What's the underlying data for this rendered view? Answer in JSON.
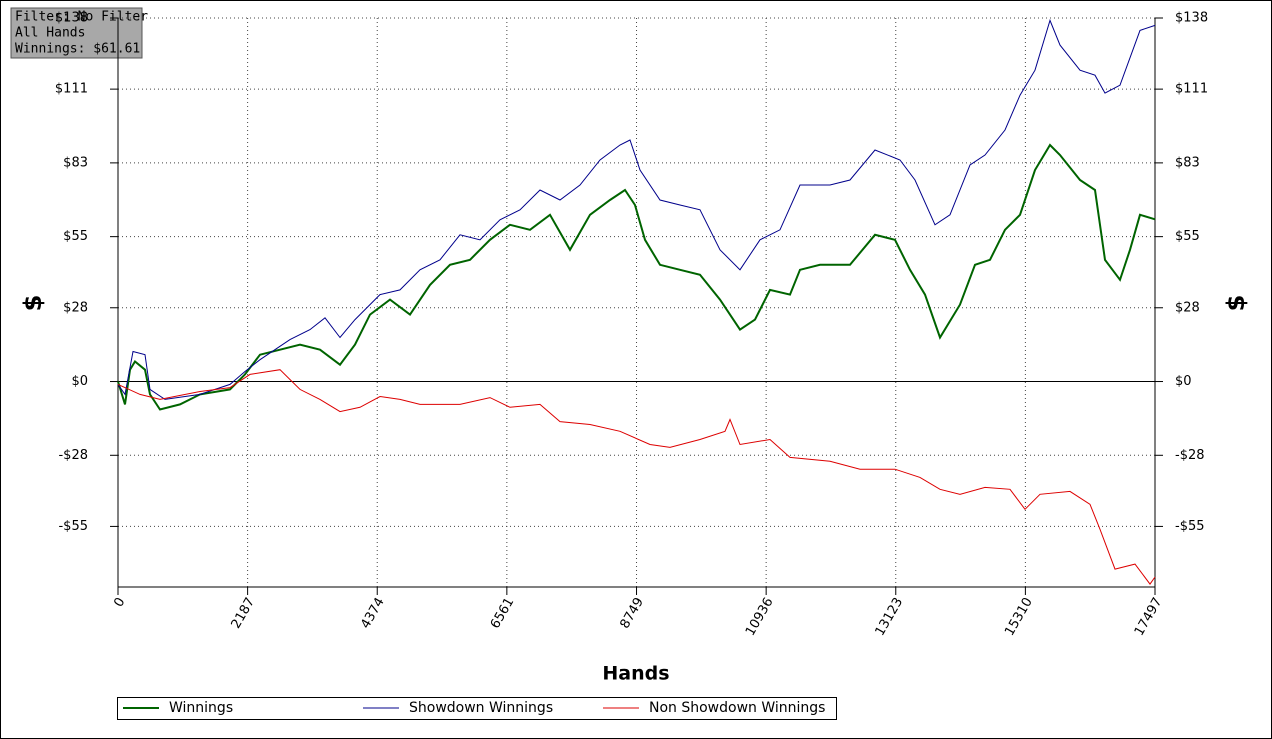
{
  "chart_data": {
    "type": "line",
    "annotations": [
      "Filter: No Filter",
      "All Hands",
      "Winnings: $61.61"
    ],
    "xlabel": "Hands",
    "ylabel": "$",
    "y2label": "$",
    "xlim": [
      0,
      17497
    ],
    "xticks": [
      0,
      2187,
      4374,
      6561,
      8749,
      10936,
      13123,
      15310,
      17497
    ],
    "ylim": [
      -78,
      138
    ],
    "yticks": [
      {
        "value": 138,
        "label": "$138"
      },
      {
        "value": 111,
        "label": "$111"
      },
      {
        "value": 83,
        "label": "$83"
      },
      {
        "value": 55,
        "label": "$55"
      },
      {
        "value": 28,
        "label": "$28"
      },
      {
        "value": 0,
        "label": "$0"
      },
      {
        "value": -28,
        "label": "-$28"
      },
      {
        "value": -55,
        "label": "-$55"
      }
    ],
    "y2lim": [
      -78,
      138
    ],
    "y2ticks": [
      {
        "value": 138,
        "label": "$138"
      },
      {
        "value": 111,
        "label": "$111"
      },
      {
        "value": 83,
        "label": "$83"
      },
      {
        "value": 55,
        "label": "$55"
      },
      {
        "value": 28,
        "label": "$28"
      },
      {
        "value": 0,
        "label": "$0"
      },
      {
        "value": -28,
        "label": "-$28"
      },
      {
        "value": -55,
        "label": "-$55"
      }
    ],
    "grid": true,
    "legend": "bottom",
    "series": [
      {
        "name": "Winnings",
        "color": "#006400",
        "x": [
          0,
          118,
          202,
          287,
          456,
          540,
          709,
          1046,
          1384,
          1890,
          2143,
          2396,
          2734,
          3071,
          3409,
          3746,
          3999,
          4252,
          4590,
          4927,
          5264,
          5602,
          5939,
          6277,
          6614,
          6952,
          7289,
          7627,
          7964,
          8302,
          8555,
          8723,
          8892,
          9145,
          9483,
          9820,
          10157,
          10495,
          10748,
          11001,
          11339,
          11507,
          11845,
          12351,
          12773,
          13110,
          13363,
          13616,
          13870,
          14207,
          14460,
          14713,
          14966,
          15219,
          15472,
          15726,
          15894,
          16232,
          16485,
          16654,
          16907,
          17075,
          17244,
          17497
        ],
        "values": [
          0,
          -8.7,
          4.5,
          7.6,
          4.5,
          -4.9,
          -10.6,
          -8.7,
          -4.9,
          -3.0,
          2.7,
          10.2,
          12.1,
          14.0,
          12.1,
          6.4,
          14.0,
          25.4,
          31.1,
          25.4,
          36.7,
          44.3,
          46.2,
          53.8,
          59.5,
          57.6,
          63.3,
          50.0,
          63.3,
          68.9,
          72.7,
          67.0,
          53.8,
          44.3,
          42.4,
          40.5,
          31.1,
          19.7,
          23.5,
          34.8,
          33.0,
          42.4,
          44.3,
          44.3,
          55.7,
          53.8,
          42.4,
          33.0,
          16.7,
          29.2,
          44.3,
          46.2,
          57.6,
          63.3,
          80.3,
          89.8,
          86.0,
          76.5,
          72.7,
          46.2,
          38.6,
          50.0,
          63.3,
          61.6
        ]
      },
      {
        "name": "Showdown Winnings",
        "color": "#00008b",
        "x": [
          0,
          118,
          253,
          456,
          540,
          793,
          1384,
          1890,
          2143,
          2396,
          2902,
          3240,
          3493,
          3746,
          3999,
          4421,
          4758,
          5096,
          5433,
          5771,
          6108,
          6445,
          6783,
          7120,
          7458,
          7795,
          8133,
          8470,
          8639,
          8808,
          9145,
          9483,
          9820,
          10157,
          10495,
          10832,
          11170,
          11507,
          12014,
          12351,
          12773,
          13195,
          13448,
          13785,
          14038,
          14376,
          14629,
          14966,
          15219,
          15472,
          15726,
          15894,
          16232,
          16485,
          16654,
          16907,
          17244,
          17497
        ],
        "values": [
          -1.1,
          -4.9,
          11.4,
          10.2,
          -3.0,
          -6.8,
          -4.9,
          -1.1,
          3.8,
          8.3,
          15.9,
          19.7,
          24.2,
          16.7,
          23.5,
          33.0,
          34.8,
          42.4,
          46.2,
          55.7,
          53.8,
          61.4,
          65.2,
          72.7,
          68.9,
          74.6,
          84.1,
          89.8,
          91.7,
          80.3,
          68.9,
          67.0,
          65.2,
          50.0,
          42.4,
          53.8,
          57.6,
          74.6,
          74.6,
          76.5,
          87.9,
          84.1,
          76.5,
          59.5,
          63.3,
          82.2,
          86.0,
          95.5,
          108.7,
          118.2,
          137.1,
          127.7,
          118.2,
          116.3,
          109.5,
          112.5,
          133.3,
          135.2
        ]
      },
      {
        "name": "Non Showdown Winnings",
        "color": "#dd0000",
        "x": [
          0,
          371,
          709,
          1384,
          1890,
          2227,
          2734,
          3071,
          3409,
          3746,
          4083,
          4421,
          4758,
          5096,
          5433,
          5771,
          6277,
          6614,
          7120,
          7458,
          7964,
          8470,
          8976,
          9314,
          9820,
          10242,
          10326,
          10495,
          11001,
          11339,
          12014,
          12520,
          13110,
          13532,
          13870,
          14207,
          14629,
          15051,
          15304,
          15557,
          16063,
          16401,
          16569,
          16822,
          17160,
          17413,
          17497
        ],
        "values": [
          -1.1,
          -4.9,
          -6.8,
          -3.8,
          -2.3,
          2.7,
          4.5,
          -3.0,
          -6.8,
          -11.4,
          -9.8,
          -5.7,
          -6.8,
          -8.7,
          -8.7,
          -8.7,
          -6.1,
          -9.8,
          -8.7,
          -15.2,
          -16.3,
          -18.9,
          -23.9,
          -25.0,
          -22.0,
          -18.9,
          -14.4,
          -23.9,
          -22.0,
          -28.8,
          -30.3,
          -33.3,
          -33.3,
          -36.4,
          -40.9,
          -42.8,
          -40.2,
          -40.9,
          -48.5,
          -42.8,
          -41.7,
          -46.6,
          -56.1,
          -71.2,
          -69.3,
          -76.9,
          -74.2
        ]
      }
    ]
  }
}
